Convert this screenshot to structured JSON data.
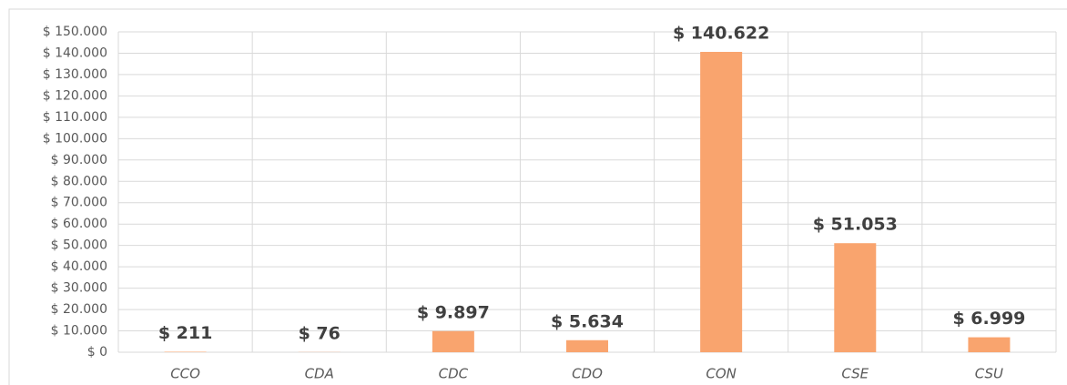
{
  "chart_data": {
    "type": "bar",
    "categories": [
      "CCO",
      "CDA",
      "CDC",
      "CDO",
      "CON",
      "CSE",
      "CSU"
    ],
    "values": [
      211,
      76,
      9897,
      5634,
      140622,
      51053,
      6999
    ],
    "value_labels": [
      "$ 211",
      "$ 76",
      "$ 9.897",
      "$ 5.634",
      "$ 140.622",
      "$ 51.053",
      "$ 6.999"
    ],
    "color": "#f9a46e",
    "ylim": [
      0,
      150000
    ],
    "yticks": [
      {
        "value": 0,
        "label": "$ 0"
      },
      {
        "value": 10000,
        "label": "$ 10.000"
      },
      {
        "value": 20000,
        "label": "$ 20.000"
      },
      {
        "value": 30000,
        "label": "$ 30.000"
      },
      {
        "value": 40000,
        "label": "$ 40.000"
      },
      {
        "value": 50000,
        "label": "$ 50.000"
      },
      {
        "value": 60000,
        "label": "$ 60.000"
      },
      {
        "value": 70000,
        "label": "$ 70.000"
      },
      {
        "value": 80000,
        "label": "$ 80.000"
      },
      {
        "value": 90000,
        "label": "$ 90.000"
      },
      {
        "value": 100000,
        "label": "$ 100.000"
      },
      {
        "value": 110000,
        "label": "$ 110.000"
      },
      {
        "value": 120000,
        "label": "$ 120.000"
      },
      {
        "value": 130000,
        "label": "$ 130.000"
      },
      {
        "value": 140000,
        "label": "$ 140.000"
      },
      {
        "value": 150000,
        "label": "$ 150.000"
      }
    ],
    "grid": true
  }
}
